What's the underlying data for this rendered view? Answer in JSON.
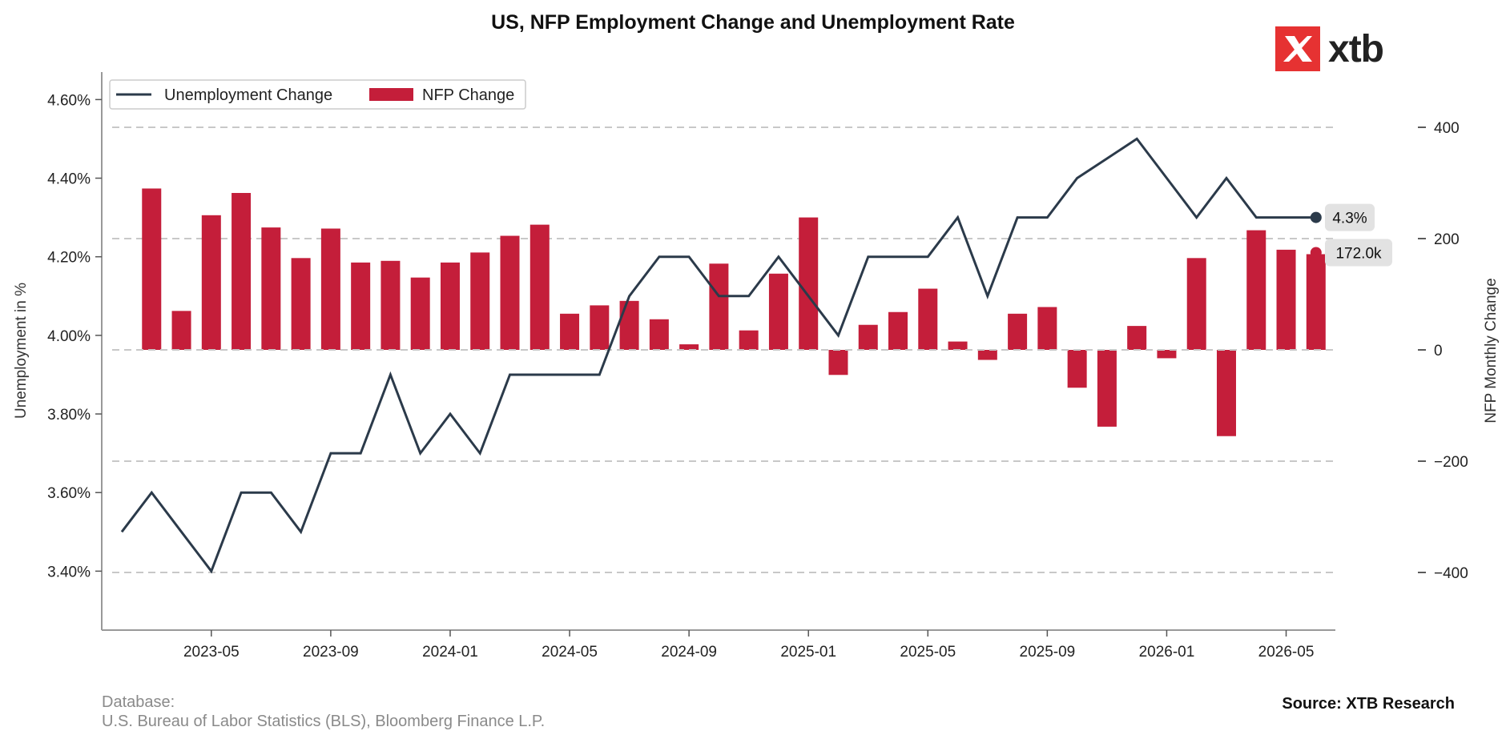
{
  "chart_data": {
    "type": "bar+line",
    "title": "US, NFP Employment Change and Unemployment Rate",
    "x": [
      "2023-02",
      "2023-03",
      "2023-04",
      "2023-05",
      "2023-06",
      "2023-07",
      "2023-08",
      "2023-09",
      "2023-10",
      "2023-11",
      "2023-12",
      "2024-01",
      "2024-02",
      "2024-03",
      "2024-04",
      "2024-05",
      "2024-06",
      "2024-07",
      "2024-08",
      "2024-09",
      "2024-10",
      "2024-11",
      "2024-12",
      "2025-01",
      "2025-02",
      "2025-03",
      "2025-04",
      "2025-05",
      "2025-06",
      "2025-07",
      "2025-08",
      "2025-09",
      "2025-10",
      "2025-11",
      "2025-12",
      "2026-01",
      "2026-02",
      "2026-03",
      "2026-04",
      "2026-05",
      "2026-06"
    ],
    "xticks": [
      "2023-05",
      "2023-09",
      "2024-01",
      "2024-05",
      "2024-09",
      "2025-01",
      "2025-05",
      "2025-09",
      "2026-01",
      "2026-05"
    ],
    "series": [
      {
        "name": "Unemployment Change",
        "axis": "left",
        "kind": "line",
        "color": "#2b3a4a",
        "values": [
          3.5,
          3.6,
          3.5,
          3.4,
          3.6,
          3.6,
          3.5,
          3.7,
          3.7,
          3.9,
          3.7,
          3.8,
          3.7,
          3.9,
          3.9,
          3.9,
          3.9,
          4.1,
          4.2,
          4.2,
          4.1,
          4.1,
          4.2,
          4.1,
          4.0,
          4.2,
          4.2,
          4.2,
          4.3,
          4.1,
          4.3,
          4.3,
          4.4,
          4.45,
          4.5,
          4.4,
          4.3,
          4.4,
          4.3,
          4.3,
          4.3
        ]
      },
      {
        "name": "NFP Change",
        "axis": "right",
        "kind": "bar",
        "color": "#c41e3a",
        "values": [
          null,
          290,
          70,
          242,
          282,
          220,
          165,
          218,
          157,
          160,
          130,
          157,
          175,
          205,
          225,
          65,
          80,
          88,
          55,
          10,
          155,
          35,
          137,
          238,
          -45,
          45,
          68,
          110,
          15,
          -18,
          65,
          77,
          -68,
          -138,
          43,
          -15,
          165,
          -155,
          215,
          180,
          172
        ]
      }
    ],
    "ylabel": "Unemployment in %",
    "ylabel_right": "NFP Monthly Change",
    "ylim": [
      3.25,
      4.67
    ],
    "ylim_right": [
      -500,
      500
    ],
    "yticks": [
      "4.60%",
      "4.40%",
      "4.20%",
      "4.00%",
      "3.80%",
      "3.60%",
      "3.40%"
    ],
    "yticks_right": [
      "400",
      "200",
      "0",
      "−200",
      "−400"
    ],
    "legend_placement": "top-left",
    "grid": "horizontal dashed at right-axis ticks",
    "end_labels": {
      "line": "4.3%",
      "bar": "172.0k"
    }
  },
  "logo": {
    "text": "xtb",
    "mark_color": "#e63232"
  },
  "footer": {
    "database_label": "Database:",
    "database_value": "U.S. Bureau of Labor Statistics (BLS), Bloomberg Finance L.P.",
    "source": "Source: XTB Research"
  }
}
